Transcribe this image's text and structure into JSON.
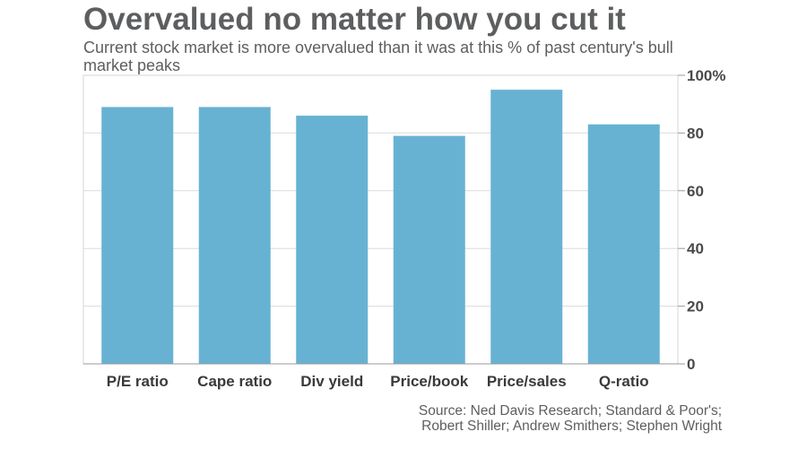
{
  "chart_data": {
    "type": "bar",
    "title": "Overvalued no matter how you cut it",
    "subtitle": "Current stock market is more overvalued than it was at this % of past century's bull market peaks",
    "categories": [
      "P/E ratio",
      "Cape ratio",
      "Div yield",
      "Price/book",
      "Price/sales",
      "Q-ratio"
    ],
    "values": [
      89,
      89,
      86,
      79,
      95,
      83
    ],
    "ylim": [
      0,
      100
    ],
    "yticks": [
      0,
      20,
      40,
      60,
      80,
      100
    ],
    "ytick_labels": [
      "0",
      "20",
      "40",
      "60",
      "80",
      "100%"
    ],
    "xlabel": "",
    "ylabel": "",
    "grid": true,
    "legend": "none",
    "y_axis_side": "right",
    "bar_color": "#67b2d2",
    "source_lines": [
      "Source: Ned Davis Research; Standard & Poor's;",
      "Robert Shiller; Andrew Smithers; Stephen Wright"
    ]
  }
}
